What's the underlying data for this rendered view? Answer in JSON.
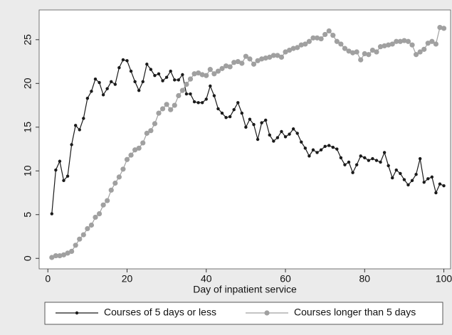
{
  "chart_data": {
    "type": "line",
    "xlabel": "Day of inpatient service",
    "x": [
      1,
      2,
      3,
      4,
      5,
      6,
      7,
      8,
      9,
      10,
      11,
      12,
      13,
      14,
      15,
      16,
      17,
      18,
      19,
      20,
      21,
      22,
      23,
      24,
      25,
      26,
      27,
      28,
      29,
      30,
      31,
      32,
      33,
      34,
      35,
      36,
      37,
      38,
      39,
      40,
      41,
      42,
      43,
      44,
      45,
      46,
      47,
      48,
      49,
      50,
      51,
      52,
      53,
      54,
      55,
      56,
      57,
      58,
      59,
      60,
      61,
      62,
      63,
      64,
      65,
      66,
      67,
      68,
      69,
      70,
      71,
      72,
      73,
      74,
      75,
      76,
      77,
      78,
      79,
      80,
      81,
      82,
      83,
      84,
      85,
      86,
      87,
      88,
      89,
      90,
      91,
      92,
      93,
      94,
      95,
      96,
      97,
      98,
      99,
      100
    ],
    "series": [
      {
        "name": "Courses of 5 days or less",
        "color": "#1a1a1a",
        "values": [
          5.1,
          10.1,
          11.1,
          8.9,
          9.4,
          13.0,
          15.2,
          14.7,
          16.0,
          18.3,
          19.1,
          20.5,
          20.1,
          18.7,
          19.4,
          20.2,
          19.9,
          21.8,
          22.7,
          22.6,
          21.4,
          20.2,
          19.2,
          20.2,
          22.2,
          21.6,
          20.9,
          21.1,
          20.3,
          20.7,
          21.4,
          20.4,
          20.4,
          21.0,
          18.8,
          18.8,
          17.9,
          17.8,
          17.8,
          18.2,
          19.7,
          18.6,
          17.1,
          16.6,
          16.1,
          16.2,
          17.0,
          17.8,
          16.6,
          15.0,
          15.9,
          15.3,
          13.6,
          15.5,
          15.8,
          14.1,
          13.4,
          13.8,
          14.5,
          13.9,
          14.2,
          14.8,
          14.3,
          13.3,
          12.6,
          11.7,
          12.4,
          12.1,
          12.4,
          12.8,
          12.9,
          12.7,
          12.5,
          11.5,
          10.7,
          11.0,
          9.8,
          10.7,
          11.7,
          11.5,
          11.2,
          11.4,
          11.2,
          11.0,
          12.1,
          10.6,
          9.2,
          10.1,
          9.7,
          9.0,
          8.4,
          8.9,
          9.6,
          11.4,
          8.7,
          9.1,
          9.3,
          7.5,
          8.5,
          8.3
        ]
      },
      {
        "name": "Courses longer than 5 days",
        "color": "#a0a0a0",
        "values": [
          0.1,
          0.3,
          0.3,
          0.4,
          0.6,
          0.8,
          1.5,
          2.2,
          2.7,
          3.4,
          3.8,
          4.7,
          5.1,
          6.1,
          6.6,
          7.8,
          8.6,
          9.3,
          10.2,
          11.3,
          11.8,
          12.4,
          12.6,
          13.2,
          14.3,
          14.6,
          15.4,
          16.6,
          17.1,
          17.6,
          17.0,
          17.5,
          18.6,
          19.2,
          19.9,
          20.5,
          21.1,
          21.2,
          21.0,
          20.9,
          21.6,
          21.1,
          21.4,
          21.7,
          22.0,
          21.9,
          22.4,
          22.5,
          22.3,
          23.1,
          22.8,
          22.2,
          22.6,
          22.8,
          22.9,
          23.0,
          23.2,
          23.2,
          23.0,
          23.6,
          23.8,
          24.0,
          24.1,
          24.4,
          24.5,
          24.8,
          25.2,
          25.2,
          25.1,
          25.6,
          26.0,
          25.5,
          24.8,
          24.5,
          24.0,
          23.7,
          23.5,
          23.6,
          22.7,
          23.4,
          23.3,
          23.8,
          23.6,
          24.2,
          24.3,
          24.4,
          24.5,
          24.8,
          24.8,
          24.9,
          24.8,
          24.4,
          23.3,
          23.6,
          23.9,
          24.6,
          24.8,
          24.5,
          26.4,
          26.3
        ]
      }
    ],
    "xlim": [
      -2.2,
      101.7
    ],
    "xticks": [
      0,
      20,
      40,
      60,
      80,
      100
    ],
    "ylim": [
      -1.2,
      28.4
    ],
    "yticks": [
      0,
      5,
      10,
      15,
      20,
      25
    ],
    "grid": false,
    "legend": "bottom"
  }
}
